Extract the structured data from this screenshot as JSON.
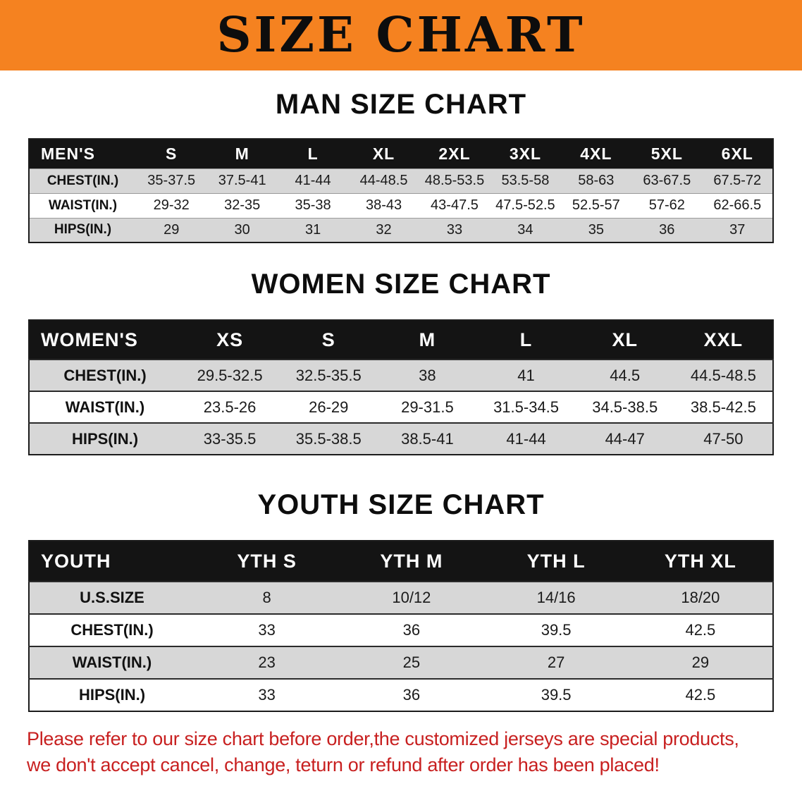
{
  "banner": {
    "title": "SIZE CHART"
  },
  "colors": {
    "banner_bg": "#f58220",
    "header_bg": "#141414",
    "row_alt": "#d7d7d7",
    "disclaimer": "#c82020"
  },
  "sections": {
    "men": {
      "heading": "MAN SIZE CHART",
      "table": {
        "header": [
          "MEN'S",
          "S",
          "M",
          "L",
          "XL",
          "2XL",
          "3XL",
          "4XL",
          "5XL",
          "6XL"
        ],
        "rows": [
          [
            "CHEST(IN.)",
            "35-37.5",
            "37.5-41",
            "41-44",
            "44-48.5",
            "48.5-53.5",
            "53.5-58",
            "58-63",
            "63-67.5",
            "67.5-72"
          ],
          [
            "WAIST(IN.)",
            "29-32",
            "32-35",
            "35-38",
            "38-43",
            "43-47.5",
            "47.5-52.5",
            "52.5-57",
            "57-62",
            "62-66.5"
          ],
          [
            "HIPS(IN.)",
            "29",
            "30",
            "31",
            "32",
            "33",
            "34",
            "35",
            "36",
            "37"
          ]
        ]
      }
    },
    "women": {
      "heading": "WOMEN SIZE CHART",
      "table": {
        "header": [
          "WOMEN'S",
          "XS",
          "S",
          "M",
          "L",
          "XL",
          "XXL"
        ],
        "rows": [
          [
            "CHEST(IN.)",
            "29.5-32.5",
            "32.5-35.5",
            "38",
            "41",
            "44.5",
            "44.5-48.5"
          ],
          [
            "WAIST(IN.)",
            "23.5-26",
            "26-29",
            "29-31.5",
            "31.5-34.5",
            "34.5-38.5",
            "38.5-42.5"
          ],
          [
            "HIPS(IN.)",
            "33-35.5",
            "35.5-38.5",
            "38.5-41",
            "41-44",
            "44-47",
            "47-50"
          ]
        ]
      }
    },
    "youth": {
      "heading": "YOUTH SIZE CHART",
      "table": {
        "header": [
          "YOUTH",
          "YTH S",
          "YTH M",
          "YTH L",
          "YTH XL"
        ],
        "rows": [
          [
            "U.S.SIZE",
            "8",
            "10/12",
            "14/16",
            "18/20"
          ],
          [
            "CHEST(IN.)",
            "33",
            "36",
            "39.5",
            "42.5"
          ],
          [
            "WAIST(IN.)",
            "23",
            "25",
            "27",
            "29"
          ],
          [
            "HIPS(IN.)",
            "33",
            "36",
            "39.5",
            "42.5"
          ]
        ]
      }
    }
  },
  "disclaimer": {
    "line1": "Please refer to our size chart before order,the customized jerseys are special products,",
    "line2": "we don't accept cancel, change, teturn or refund after order has been placed!"
  }
}
